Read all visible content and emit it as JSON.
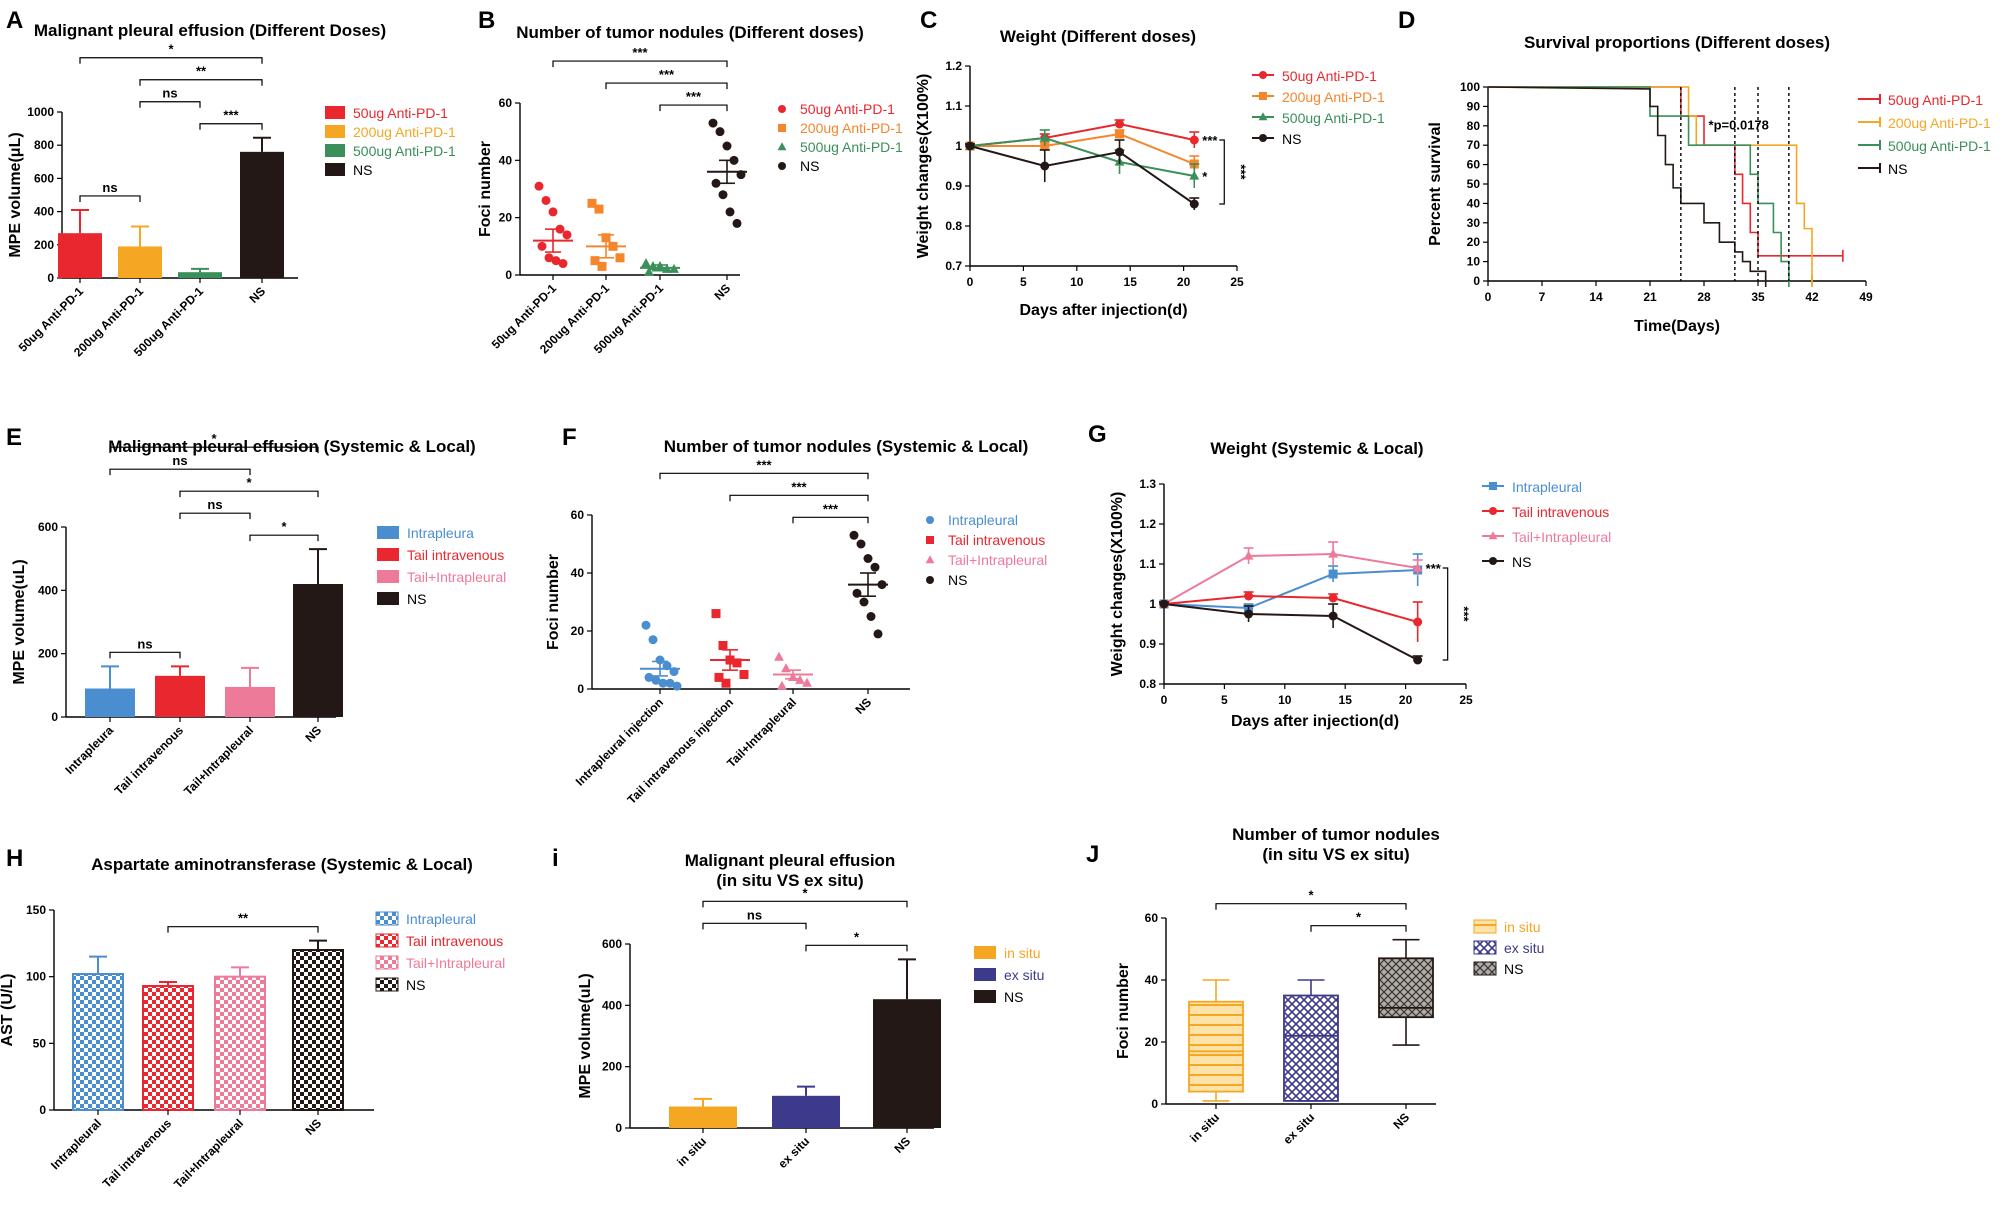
{
  "chart_data": [
    {
      "panel": "A",
      "type": "bar",
      "title": "Malignant pleural effusion (Different Doses)",
      "ylabel": "MPE volume(μL)",
      "ylim": [
        0,
        1000
      ],
      "yticks": [
        0,
        200,
        400,
        600,
        800,
        1000
      ],
      "categories": [
        "50ug Anti-PD-1",
        "200ug Anti-PD-1",
        "500ug Anti-PD-1",
        "NS"
      ],
      "values": [
        270,
        190,
        35,
        760
      ],
      "errors": [
        140,
        120,
        20,
        85
      ],
      "colors": [
        "#e8282e",
        "#f5a623",
        "#3a8f5a",
        "#231815"
      ],
      "fills": [
        "solid",
        "solid",
        "solid",
        "solid"
      ],
      "legend": [
        "50ug Anti-PD-1",
        "200ug Anti-PD-1",
        "500ug Anti-PD-1",
        "NS"
      ],
      "legend_colors": [
        "#e8282e",
        "#f5a623",
        "#3a8f5a",
        "#231815"
      ],
      "brackets": [
        {
          "from": 0,
          "to": 3,
          "label": "*"
        },
        {
          "from": 1,
          "to": 3,
          "label": "**"
        },
        {
          "from": 2,
          "to": 3,
          "label": "***"
        },
        {
          "from": 0,
          "to": 1,
          "label": "ns"
        },
        {
          "from": 1,
          "to": 2,
          "label": "ns"
        }
      ]
    },
    {
      "panel": "B",
      "type": "scatter",
      "title": "Number of tumor nodules (Different doses)",
      "ylabel": "Foci number",
      "ylim": [
        0,
        60
      ],
      "yticks": [
        0,
        20,
        40,
        60
      ],
      "categories": [
        "50ug Anti-PD-1",
        "200ug Anti-PD-1",
        "500ug Anti-PD-1",
        "NS"
      ],
      "colors": [
        "#e8282e",
        "#f5862b",
        "#3a8f5a",
        "#231815"
      ],
      "markers": [
        "circle",
        "square",
        "triangle",
        "circle"
      ],
      "points": [
        [
          31,
          26,
          22,
          16,
          14,
          10,
          6,
          5,
          4
        ],
        [
          25,
          23,
          13,
          10,
          6,
          5,
          3
        ],
        [
          4,
          3,
          3,
          2,
          2,
          1
        ],
        [
          53,
          50,
          45,
          40,
          35,
          32,
          28,
          22,
          18
        ]
      ],
      "means": [
        12,
        10,
        2.5,
        36
      ],
      "sems": [
        4,
        4,
        1,
        4
      ],
      "legend": [
        "50ug Anti-PD-1",
        "200ug Anti-PD-1",
        "500ug Anti-PD-1",
        "NS"
      ],
      "brackets": [
        {
          "from": 0,
          "to": 3,
          "label": "***"
        },
        {
          "from": 1,
          "to": 3,
          "label": "***"
        },
        {
          "from": 2,
          "to": 3,
          "label": "***"
        }
      ]
    },
    {
      "panel": "C",
      "type": "line",
      "title": "Weight (Different doses)",
      "xlabel": "Days after injection(d)",
      "ylabel": "Weight changes(X100%)",
      "xlim": [
        0,
        25
      ],
      "xticks": [
        0,
        5,
        10,
        15,
        20,
        25
      ],
      "ylim": [
        0.7,
        1.2
      ],
      "yticks": [
        0.7,
        0.8,
        0.9,
        1.0,
        1.1,
        1.2
      ],
      "x": [
        0,
        7,
        14,
        21
      ],
      "series": [
        {
          "name": "50ug Anti-PD-1",
          "values": [
            1.0,
            1.02,
            1.055,
            1.015
          ],
          "errors": [
            0.005,
            0.01,
            0.01,
            0.02
          ],
          "color": "#e8282e",
          "marker": "circle"
        },
        {
          "name": "200ug Anti-PD-1",
          "values": [
            1.0,
            1.0,
            1.03,
            0.955
          ],
          "errors": [
            0.005,
            0.01,
            0.01,
            0.02
          ],
          "color": "#f5862b",
          "marker": "square"
        },
        {
          "name": "500ug Anti-PD-1",
          "values": [
            1.0,
            1.02,
            0.96,
            0.925
          ],
          "errors": [
            0.005,
            0.02,
            0.03,
            0.03
          ],
          "color": "#3a8f5a",
          "marker": "triangle"
        },
        {
          "name": "NS",
          "values": [
            1.0,
            0.95,
            0.985,
            0.855
          ],
          "errors": [
            0.005,
            0.04,
            0.03,
            0.015
          ],
          "color": "#231815",
          "marker": "circle"
        }
      ],
      "annotations": [
        {
          "label": "***",
          "series": 0
        },
        {
          "label": "*",
          "series": 2
        }
      ],
      "vbracket": "***"
    },
    {
      "panel": "D",
      "type": "line",
      "subtype": "step",
      "title": "Survival proportions (Different doses)",
      "xlabel": "Time(Days)",
      "ylabel": "Percent survival",
      "xlim": [
        0,
        49
      ],
      "xticks": [
        0,
        7,
        14,
        21,
        28,
        35,
        42,
        49
      ],
      "ylim": [
        0,
        100
      ],
      "yticks": [
        0,
        10,
        20,
        30,
        40,
        50,
        60,
        70,
        80,
        90,
        100
      ],
      "series": [
        {
          "name": "50ug Anti-PD-1",
          "color": "#e8282e",
          "steps": [
            [
              0,
              100
            ],
            [
              25,
              100
            ],
            [
              25,
              85
            ],
            [
              28,
              85
            ],
            [
              28,
              70
            ],
            [
              32,
              70
            ],
            [
              32,
              55
            ],
            [
              33,
              55
            ],
            [
              33,
              40
            ],
            [
              34,
              40
            ],
            [
              34,
              25
            ],
            [
              35,
              25
            ],
            [
              35,
              13
            ],
            [
              46,
              13
            ]
          ]
        },
        {
          "name": "200ug Anti-PD-1",
          "color": "#f5a623",
          "steps": [
            [
              0,
              100
            ],
            [
              26,
              100
            ],
            [
              26,
              85
            ],
            [
              27,
              85
            ],
            [
              27,
              70
            ],
            [
              40,
              70
            ],
            [
              40,
              40
            ],
            [
              41,
              40
            ],
            [
              41,
              27
            ],
            [
              42,
              27
            ],
            [
              42,
              0
            ]
          ]
        },
        {
          "name": "500ug Anti-PD-1",
          "color": "#3a8f5a",
          "steps": [
            [
              0,
              100
            ],
            [
              21,
              100
            ],
            [
              21,
              85
            ],
            [
              26,
              85
            ],
            [
              26,
              70
            ],
            [
              34,
              70
            ],
            [
              34,
              55
            ],
            [
              35,
              55
            ],
            [
              35,
              40
            ],
            [
              37,
              40
            ],
            [
              37,
              25
            ],
            [
              38,
              25
            ],
            [
              38,
              10
            ],
            [
              39,
              10
            ],
            [
              39,
              0
            ]
          ]
        },
        {
          "name": "NS",
          "color": "#231815",
          "steps": [
            [
              0,
              100
            ],
            [
              21,
              99
            ],
            [
              21,
              90
            ],
            [
              22,
              90
            ],
            [
              22,
              75
            ],
            [
              23,
              75
            ],
            [
              23,
              60
            ],
            [
              24,
              60
            ],
            [
              24,
              48
            ],
            [
              25,
              48
            ],
            [
              25,
              40
            ],
            [
              28,
              40
            ],
            [
              28,
              30
            ],
            [
              30,
              30
            ],
            [
              30,
              20
            ],
            [
              32,
              20
            ],
            [
              32,
              15
            ],
            [
              33,
              15
            ],
            [
              33,
              10
            ],
            [
              34,
              10
            ],
            [
              34,
              5
            ],
            [
              36,
              5
            ],
            [
              36,
              0
            ]
          ]
        }
      ],
      "vlines": [
        25,
        32,
        35,
        39
      ],
      "annotation": "*p=0.0178"
    },
    {
      "panel": "E",
      "type": "bar",
      "title": "Malignant pleural effusion (Systemic & Local)",
      "ylabel": "MPE volume(uL)",
      "ylim": [
        0,
        600
      ],
      "yticks": [
        0,
        200,
        400,
        600
      ],
      "categories": [
        "Intrapleura",
        "Tail intravenous",
        "Tail+Intrapleural",
        "NS"
      ],
      "values": [
        90,
        130,
        95,
        420
      ],
      "errors": [
        70,
        30,
        60,
        110
      ],
      "colors": [
        "#4a8ed0",
        "#e8282e",
        "#ee7a9a",
        "#231815"
      ],
      "fills": [
        "solid",
        "solid",
        "solid",
        "solid"
      ],
      "legend": [
        "Intrapleura",
        "Tail intravenous",
        "Tail+Intrapleural",
        "NS"
      ],
      "legend_colors": [
        "#4a8ed0",
        "#e8282e",
        "#ee7a9a",
        "#231815"
      ],
      "brackets": [
        {
          "from": 0,
          "to": 3,
          "label": "*"
        },
        {
          "from": 1,
          "to": 3,
          "label": "*"
        },
        {
          "from": 2,
          "to": 3,
          "label": "*"
        },
        {
          "from": 0,
          "to": 2,
          "label": "ns"
        },
        {
          "from": 0,
          "to": 1,
          "label": "ns"
        },
        {
          "from": 1,
          "to": 2,
          "label": "ns"
        }
      ]
    },
    {
      "panel": "F",
      "type": "scatter",
      "title": "Number of tumor nodules (Systemic & Local)",
      "ylabel": "Foci number",
      "ylim": [
        0,
        60
      ],
      "yticks": [
        0,
        20,
        40,
        60
      ],
      "categories": [
        "Intrapleural injection",
        "Tail intravenous injection",
        "Tail+Intrapleural",
        "NS"
      ],
      "colors": [
        "#4a8ed0",
        "#e8282e",
        "#ee7a9a",
        "#231815"
      ],
      "markers": [
        "circle",
        "square",
        "triangle",
        "circle"
      ],
      "points": [
        [
          22,
          17,
          10,
          8,
          6,
          4,
          3,
          2,
          2,
          1
        ],
        [
          26,
          15,
          10,
          9,
          5,
          4,
          2
        ],
        [
          11,
          7,
          4,
          3,
          2,
          1
        ],
        [
          53,
          50,
          45,
          42,
          36,
          33,
          30,
          25,
          19
        ]
      ],
      "means": [
        7,
        10,
        5,
        36
      ],
      "sems": [
        2.5,
        3.5,
        1.5,
        4
      ],
      "legend": [
        "Intrapleural",
        "Tail intravenous",
        "Tail+Intrapleural",
        "NS"
      ],
      "brackets": [
        {
          "from": 0,
          "to": 3,
          "label": "***"
        },
        {
          "from": 1,
          "to": 3,
          "label": "***"
        },
        {
          "from": 2,
          "to": 3,
          "label": "***"
        }
      ]
    },
    {
      "panel": "G",
      "type": "line",
      "title": "Weight (Systemic & Local)",
      "xlabel": "Days after injection(d)",
      "ylabel": "Weight changes(X100%)",
      "xlim": [
        0,
        25
      ],
      "xticks": [
        0,
        5,
        10,
        15,
        20,
        25
      ],
      "ylim": [
        0.8,
        1.3
      ],
      "yticks": [
        0.8,
        0.9,
        1.0,
        1.1,
        1.2,
        1.3
      ],
      "x": [
        0,
        7,
        14,
        21
      ],
      "series": [
        {
          "name": "Intrapleural",
          "values": [
            1.0,
            0.99,
            1.075,
            1.085
          ],
          "errors": [
            0.005,
            0.01,
            0.02,
            0.04
          ],
          "color": "#4a8ed0",
          "marker": "square"
        },
        {
          "name": "Tail intravenous",
          "values": [
            1.0,
            1.02,
            1.015,
            0.955
          ],
          "errors": [
            0.005,
            0.01,
            0.01,
            0.05
          ],
          "color": "#e8282e",
          "marker": "circle"
        },
        {
          "name": "Tail+Intrapleural",
          "values": [
            1.0,
            1.12,
            1.125,
            1.09
          ],
          "errors": [
            0.005,
            0.02,
            0.03,
            0.02
          ],
          "color": "#ee7a9a",
          "marker": "triangle"
        },
        {
          "name": "NS",
          "values": [
            1.0,
            0.975,
            0.97,
            0.86
          ],
          "errors": [
            0.005,
            0.02,
            0.03,
            0.01
          ],
          "color": "#231815",
          "marker": "circle"
        }
      ],
      "annotations": [
        {
          "label": "***",
          "series": 2
        }
      ],
      "vbracket": "***"
    },
    {
      "panel": "H",
      "type": "bar",
      "title": "Aspartate aminotransferase (Systemic & Local)",
      "ylabel": "AST (U/L)",
      "ylim": [
        0,
        150
      ],
      "yticks": [
        0,
        50,
        100,
        150
      ],
      "categories": [
        "Intrapleural",
        "Tail intravenous",
        "Tail+Intrapleural",
        "NS"
      ],
      "values": [
        102,
        93,
        100,
        120
      ],
      "errors": [
        13,
        3,
        7,
        7
      ],
      "colors": [
        "#4a8ed0",
        "#e8282e",
        "#ee7a9a",
        "#231815"
      ],
      "fills": [
        "pattern",
        "pattern",
        "pattern",
        "pattern"
      ],
      "legend": [
        "Intrapleural",
        "Tail intravenous",
        "Tail+Intrapleural",
        "NS"
      ],
      "legend_colors": [
        "#4a8ed0",
        "#e8282e",
        "#ee7a9a",
        "#231815"
      ],
      "brackets": [
        {
          "from": 1,
          "to": 3,
          "label": "**"
        }
      ]
    },
    {
      "panel": "i",
      "type": "bar",
      "title": "Malignant pleural effusion",
      "subtitle": "(in situ VS ex situ)",
      "ylabel": "MPE volume(uL)",
      "ylim": [
        0,
        600
      ],
      "yticks": [
        0,
        200,
        400,
        600
      ],
      "categories": [
        "in situ",
        "ex situ",
        "NS"
      ],
      "values": [
        70,
        105,
        420
      ],
      "errors": [
        25,
        30,
        130
      ],
      "colors": [
        "#f5a623",
        "#3d3a8c",
        "#231815"
      ],
      "fills": [
        "solid",
        "solid",
        "solid"
      ],
      "legend": [
        "in situ",
        "ex situ",
        "NS"
      ],
      "legend_colors": [
        "#f5a623",
        "#3d3a8c",
        "#231815"
      ],
      "brackets": [
        {
          "from": 0,
          "to": 2,
          "label": "*"
        },
        {
          "from": 1,
          "to": 2,
          "label": "*"
        },
        {
          "from": 0,
          "to": 1,
          "label": "ns"
        }
      ]
    },
    {
      "panel": "J",
      "type": "box",
      "title": "Number of tumor nodules",
      "subtitle": "(in situ VS ex situ)",
      "ylabel": "Foci number",
      "ylim": [
        0,
        60
      ],
      "yticks": [
        0,
        20,
        40,
        60
      ],
      "categories": [
        "in situ",
        "ex situ",
        "NS"
      ],
      "colors": [
        "#f5a623",
        "#3d3a8c",
        "#231815"
      ],
      "boxes": [
        {
          "min": 1,
          "q1": 4,
          "median": 17,
          "q3": 33,
          "max": 40
        },
        {
          "min": 1,
          "q1": 1,
          "median": 22,
          "q3": 35,
          "max": 40
        },
        {
          "min": 19,
          "q1": 28,
          "median": 31,
          "q3": 47,
          "max": 53
        }
      ],
      "legend": [
        "in situ",
        "ex situ",
        "NS"
      ],
      "legend_colors": [
        "#f5a623",
        "#3d3a8c",
        "#231815"
      ],
      "brackets": [
        {
          "from": 0,
          "to": 2,
          "label": "*"
        },
        {
          "from": 1,
          "to": 2,
          "label": "*"
        }
      ]
    }
  ]
}
